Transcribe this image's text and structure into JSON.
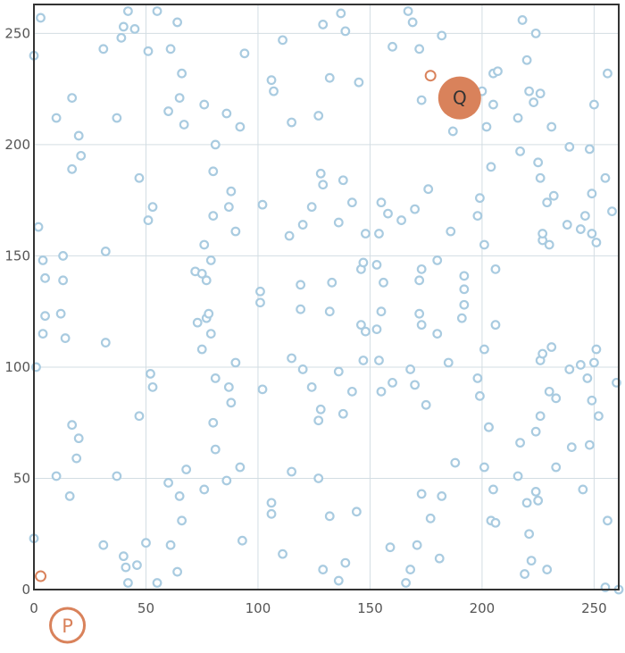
{
  "chart_data": {
    "type": "scatter",
    "title": "",
    "xlabel": "",
    "ylabel": "",
    "xlim": [
      0,
      261
    ],
    "ylim": [
      0,
      263
    ],
    "x_ticks": [
      0,
      50,
      100,
      150,
      200,
      250
    ],
    "y_ticks": [
      0,
      50,
      100,
      150,
      200,
      250
    ],
    "x_tick_labels": [
      "0",
      "50",
      "100",
      "150",
      "200",
      "250"
    ],
    "y_tick_labels": [
      "0",
      "50",
      "100",
      "150",
      "200",
      "250"
    ],
    "grid": true,
    "colors": {
      "points": "#a9cbe0",
      "highlight": "#d9825b",
      "grid": "#d3dde3",
      "axis": "#333333"
    },
    "points": [
      [
        3,
        257
      ],
      [
        0,
        240
      ],
      [
        42,
        260
      ],
      [
        55,
        260
      ],
      [
        40,
        253
      ],
      [
        45,
        252
      ],
      [
        39,
        248
      ],
      [
        31,
        243
      ],
      [
        51,
        242
      ],
      [
        61,
        243
      ],
      [
        64,
        255
      ],
      [
        66,
        232
      ],
      [
        65,
        221
      ],
      [
        60,
        215
      ],
      [
        67,
        209
      ],
      [
        76,
        218
      ],
      [
        81,
        200
      ],
      [
        86,
        214
      ],
      [
        92,
        208
      ],
      [
        94,
        241
      ],
      [
        111,
        247
      ],
      [
        106,
        229
      ],
      [
        107,
        224
      ],
      [
        115,
        210
      ],
      [
        129,
        254
      ],
      [
        137,
        259
      ],
      [
        139,
        251
      ],
      [
        132,
        230
      ],
      [
        127,
        213
      ],
      [
        145,
        228
      ],
      [
        160,
        244
      ],
      [
        167,
        260
      ],
      [
        169,
        255
      ],
      [
        172,
        243
      ],
      [
        173,
        220
      ],
      [
        182,
        249
      ],
      [
        187,
        206
      ],
      [
        200,
        224
      ],
      [
        202,
        208
      ],
      [
        204,
        190
      ],
      [
        205,
        232
      ],
      [
        207,
        233
      ],
      [
        205,
        218
      ],
      [
        218,
        256
      ],
      [
        224,
        250
      ],
      [
        220,
        238
      ],
      [
        221,
        224
      ],
      [
        226,
        223
      ],
      [
        223,
        219
      ],
      [
        216,
        212
      ],
      [
        231,
        208
      ],
      [
        217,
        197
      ],
      [
        225,
        192
      ],
      [
        226,
        185
      ],
      [
        229,
        174
      ],
      [
        232,
        177
      ],
      [
        239,
        199
      ],
      [
        248,
        198
      ],
      [
        255,
        185
      ],
      [
        246,
        168
      ],
      [
        249,
        178
      ],
      [
        258,
        170
      ],
      [
        244,
        162
      ],
      [
        238,
        164
      ],
      [
        249,
        160
      ],
      [
        251,
        156
      ],
      [
        230,
        155
      ],
      [
        227,
        157
      ],
      [
        227,
        160
      ],
      [
        256,
        232
      ],
      [
        250,
        218
      ],
      [
        17,
        221
      ],
      [
        10,
        212
      ],
      [
        37,
        212
      ],
      [
        20,
        204
      ],
      [
        21,
        195
      ],
      [
        17,
        189
      ],
      [
        47,
        185
      ],
      [
        53,
        172
      ],
      [
        51,
        166
      ],
      [
        88,
        179
      ],
      [
        87,
        172
      ],
      [
        80,
        168
      ],
      [
        90,
        161
      ],
      [
        80,
        188
      ],
      [
        102,
        173
      ],
      [
        114,
        159
      ],
      [
        120,
        164
      ],
      [
        124,
        172
      ],
      [
        128,
        187
      ],
      [
        129,
        182
      ],
      [
        138,
        184
      ],
      [
        142,
        174
      ],
      [
        136,
        165
      ],
      [
        148,
        160
      ],
      [
        154,
        160
      ],
      [
        155,
        174
      ],
      [
        158,
        169
      ],
      [
        164,
        166
      ],
      [
        170,
        171
      ],
      [
        176,
        180
      ],
      [
        186,
        161
      ],
      [
        198,
        168
      ],
      [
        199,
        176
      ],
      [
        201,
        155
      ],
      [
        2,
        163
      ],
      [
        4,
        148
      ],
      [
        13,
        150
      ],
      [
        5,
        140
      ],
      [
        32,
        152
      ],
      [
        13,
        139
      ],
      [
        5,
        123
      ],
      [
        12,
        124
      ],
      [
        4,
        115
      ],
      [
        14,
        113
      ],
      [
        32,
        111
      ],
      [
        72,
        143
      ],
      [
        75,
        142
      ],
      [
        76,
        155
      ],
      [
        79,
        148
      ],
      [
        77,
        139
      ],
      [
        73,
        120
      ],
      [
        77,
        122
      ],
      [
        78,
        124
      ],
      [
        79,
        115
      ],
      [
        101,
        134
      ],
      [
        101,
        129
      ],
      [
        115,
        104
      ],
      [
        119,
        137
      ],
      [
        119,
        126
      ],
      [
        120,
        99
      ],
      [
        133,
        138
      ],
      [
        132,
        125
      ],
      [
        136,
        98
      ],
      [
        146,
        144
      ],
      [
        147,
        147
      ],
      [
        153,
        146
      ],
      [
        146,
        119
      ],
      [
        148,
        116
      ],
      [
        153,
        117
      ],
      [
        155,
        125
      ],
      [
        156,
        138
      ],
      [
        147,
        103
      ],
      [
        154,
        103
      ],
      [
        172,
        139
      ],
      [
        173,
        144
      ],
      [
        180,
        148
      ],
      [
        173,
        119
      ],
      [
        172,
        124
      ],
      [
        180,
        115
      ],
      [
        185,
        102
      ],
      [
        192,
        141
      ],
      [
        192,
        135
      ],
      [
        192,
        128
      ],
      [
        191,
        122
      ],
      [
        206,
        144
      ],
      [
        206,
        119
      ],
      [
        201,
        108
      ],
      [
        1,
        100
      ],
      [
        52,
        97
      ],
      [
        53,
        91
      ],
      [
        75,
        108
      ],
      [
        81,
        95
      ],
      [
        87,
        91
      ],
      [
        88,
        84
      ],
      [
        90,
        102
      ],
      [
        102,
        90
      ],
      [
        124,
        91
      ],
      [
        127,
        76
      ],
      [
        128,
        81
      ],
      [
        138,
        79
      ],
      [
        142,
        89
      ],
      [
        155,
        89
      ],
      [
        160,
        93
      ],
      [
        168,
        99
      ],
      [
        170,
        92
      ],
      [
        175,
        83
      ],
      [
        198,
        95
      ],
      [
        199,
        87
      ],
      [
        203,
        73
      ],
      [
        226,
        103
      ],
      [
        227,
        106
      ],
      [
        231,
        109
      ],
      [
        239,
        99
      ],
      [
        244,
        101
      ],
      [
        247,
        95
      ],
      [
        250,
        102
      ],
      [
        251,
        108
      ],
      [
        230,
        89
      ],
      [
        233,
        86
      ],
      [
        249,
        85
      ],
      [
        252,
        78
      ],
      [
        260,
        93
      ],
      [
        17,
        74
      ],
      [
        20,
        68
      ],
      [
        19,
        59
      ],
      [
        10,
        51
      ],
      [
        16,
        42
      ],
      [
        37,
        51
      ],
      [
        47,
        78
      ],
      [
        60,
        48
      ],
      [
        65,
        42
      ],
      [
        66,
        31
      ],
      [
        68,
        54
      ],
      [
        76,
        45
      ],
      [
        81,
        63
      ],
      [
        80,
        75
      ],
      [
        86,
        49
      ],
      [
        92,
        55
      ],
      [
        106,
        39
      ],
      [
        106,
        34
      ],
      [
        93,
        22
      ],
      [
        115,
        53
      ],
      [
        127,
        50
      ],
      [
        132,
        33
      ],
      [
        144,
        35
      ],
      [
        111,
        16
      ],
      [
        129,
        9
      ],
      [
        139,
        12
      ],
      [
        136,
        4
      ],
      [
        159,
        19
      ],
      [
        166,
        3
      ],
      [
        168,
        9
      ],
      [
        171,
        20
      ],
      [
        173,
        43
      ],
      [
        177,
        32
      ],
      [
        182,
        42
      ],
      [
        181,
        14
      ],
      [
        188,
        57
      ],
      [
        201,
        55
      ],
      [
        205,
        45
      ],
      [
        203,
        73
      ],
      [
        204,
        31
      ],
      [
        206,
        30
      ],
      [
        217,
        66
      ],
      [
        216,
        51
      ],
      [
        220,
        39
      ],
      [
        221,
        25
      ],
      [
        224,
        44
      ],
      [
        225,
        40
      ],
      [
        226,
        78
      ],
      [
        224,
        71
      ],
      [
        233,
        55
      ],
      [
        240,
        64
      ],
      [
        245,
        45
      ],
      [
        248,
        65
      ],
      [
        222,
        13
      ],
      [
        219,
        7
      ],
      [
        229,
        9
      ],
      [
        255,
        1
      ],
      [
        256,
        31
      ],
      [
        261,
        0
      ],
      [
        0,
        23
      ],
      [
        31,
        20
      ],
      [
        40,
        15
      ],
      [
        41,
        10
      ],
      [
        46,
        11
      ],
      [
        50,
        21
      ],
      [
        42,
        3
      ],
      [
        55,
        3
      ],
      [
        61,
        20
      ],
      [
        64,
        8
      ]
    ],
    "highlights": [
      {
        "label": "P",
        "x": 3,
        "y": 6,
        "size": "small"
      },
      {
        "label": "Q",
        "x": 190,
        "y": 221,
        "size": "large"
      },
      {
        "label": "",
        "x": 177,
        "y": 231,
        "size": "small"
      }
    ]
  }
}
